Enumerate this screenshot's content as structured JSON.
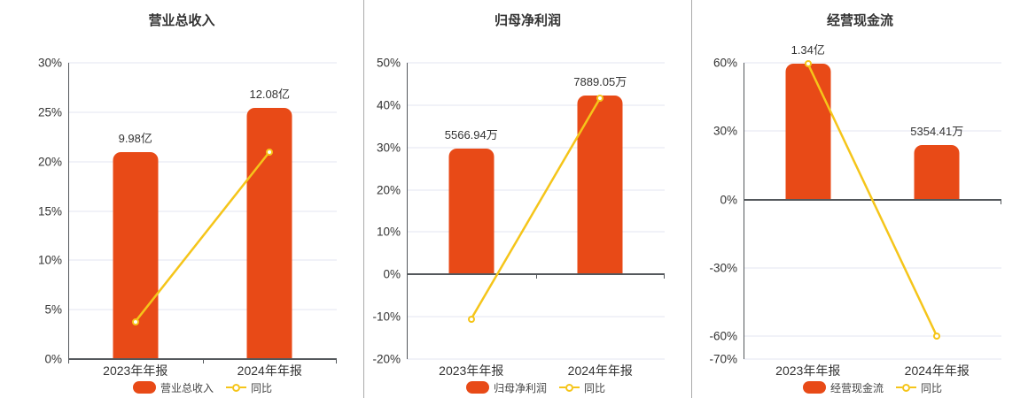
{
  "style": {
    "bar_color": "#E84A17",
    "line_color": "#F5C51A",
    "grid_color": "#E3E6F0",
    "zero_line_color": "#54585C",
    "divider_color": "#ABABAB",
    "text_color": "#333333"
  },
  "chart_data": [
    {
      "type": "bar+line",
      "title": "营业总收入",
      "categories": [
        "2023年年报",
        "2024年年报"
      ],
      "bar_series": {
        "name": "营业总收入",
        "value_labels": [
          "9.98亿",
          "12.08亿"
        ],
        "axis_values_pct": [
          21.0,
          25.4
        ]
      },
      "line_series": {
        "name": "同比",
        "values_pct": [
          3.8,
          21.0
        ]
      },
      "ylim": [
        0,
        30
      ],
      "yticks": [
        0,
        5,
        10,
        15,
        20,
        25,
        30
      ],
      "ytick_suffix": "%",
      "grid": true,
      "legend_position": "bottom"
    },
    {
      "type": "bar+line",
      "title": "归母净利润",
      "categories": [
        "2023年年报",
        "2024年年报"
      ],
      "bar_series": {
        "name": "归母净利润",
        "value_labels": [
          "5566.94万",
          "7889.05万"
        ],
        "axis_values_pct": [
          29.8,
          42.2
        ]
      },
      "line_series": {
        "name": "同比",
        "values_pct": [
          -10.5,
          41.7
        ]
      },
      "ylim": [
        -20,
        50
      ],
      "yticks": [
        -20,
        -10,
        0,
        10,
        20,
        30,
        40,
        50
      ],
      "ytick_suffix": "%",
      "grid": true,
      "legend_position": "bottom"
    },
    {
      "type": "bar+line",
      "title": "经营现金流",
      "categories": [
        "2023年年报",
        "2024年年报"
      ],
      "bar_series": {
        "name": "经营现金流",
        "value_labels": [
          "1.34亿",
          "5354.41万"
        ],
        "axis_values_pct": [
          59.7,
          23.9
        ]
      },
      "line_series": {
        "name": "同比",
        "values_pct": [
          59.5,
          -60.0
        ]
      },
      "ylim": [
        -70,
        60
      ],
      "yticks": [
        -70,
        -60,
        -30,
        0,
        30,
        60
      ],
      "ytick_suffix": "%",
      "grid": true,
      "legend_position": "bottom"
    }
  ]
}
